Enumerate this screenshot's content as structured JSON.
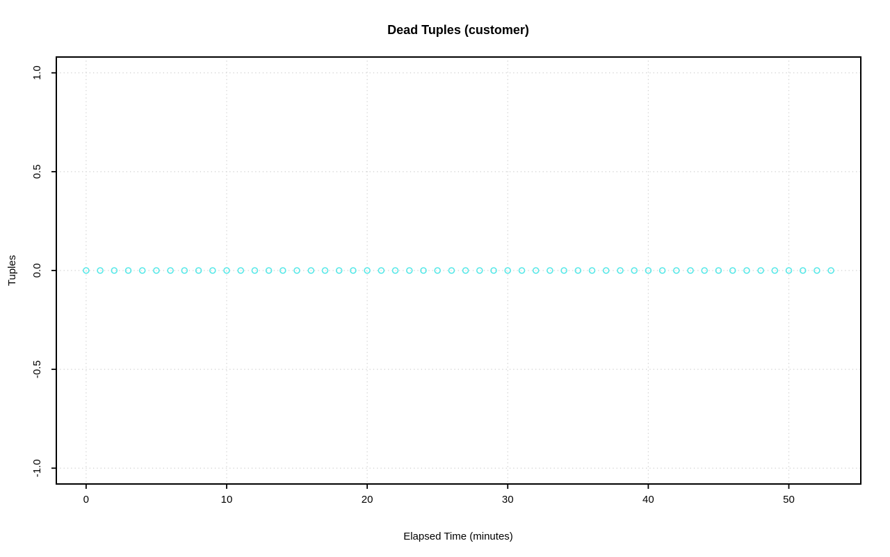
{
  "chart_data": {
    "type": "scatter",
    "title": "Dead Tuples (customer)",
    "xlabel": "Elapsed Time (minutes)",
    "ylabel": "Tuples",
    "x": [
      0,
      1,
      2,
      3,
      4,
      5,
      6,
      7,
      8,
      9,
      10,
      11,
      12,
      13,
      14,
      15,
      16,
      17,
      18,
      19,
      20,
      21,
      22,
      23,
      24,
      25,
      26,
      27,
      28,
      29,
      30,
      31,
      32,
      33,
      34,
      35,
      36,
      37,
      38,
      39,
      40,
      41,
      42,
      43,
      44,
      45,
      46,
      47,
      48,
      49,
      50,
      51,
      52,
      53
    ],
    "y": [
      0,
      0,
      0,
      0,
      0,
      0,
      0,
      0,
      0,
      0,
      0,
      0,
      0,
      0,
      0,
      0,
      0,
      0,
      0,
      0,
      0,
      0,
      0,
      0,
      0,
      0,
      0,
      0,
      0,
      0,
      0,
      0,
      0,
      0,
      0,
      0,
      0,
      0,
      0,
      0,
      0,
      0,
      0,
      0,
      0,
      0,
      0,
      0,
      0,
      0,
      0,
      0,
      0,
      0
    ],
    "xlim": [
      -2.12,
      55.12
    ],
    "ylim": [
      -1.08,
      1.08
    ],
    "xticks": {
      "values": [
        0,
        10,
        20,
        30,
        40,
        50
      ],
      "labels": [
        "0",
        "10",
        "20",
        "30",
        "40",
        "50"
      ]
    },
    "yticks": {
      "values": [
        -1.0,
        -0.5,
        0.0,
        0.5,
        1.0
      ],
      "labels": [
        "-1.0",
        "-0.5",
        "0.0",
        "0.5",
        "1.0"
      ]
    },
    "grid": true,
    "legend": "none",
    "colors": {
      "point_stroke": "#57e8e8",
      "grid": "#cfcfcf",
      "box": "#000000",
      "text": "#000000",
      "background": "#ffffff"
    },
    "marker": "open-circle"
  }
}
